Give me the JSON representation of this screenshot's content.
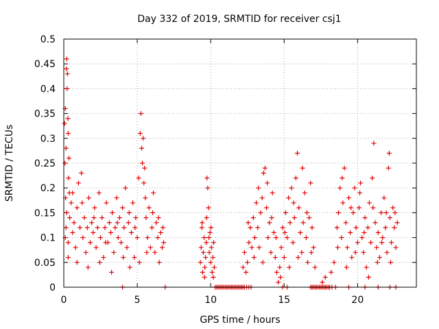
{
  "chart_data": {
    "type": "scatter",
    "title": "Day 332 of 2019, SRMTID for receiver csj1",
    "xlabel": "GPS time / hours",
    "ylabel": "SRMTID / TECUs",
    "xlim": [
      0,
      24
    ],
    "ylim": [
      0,
      0.5
    ],
    "xticks": [
      0,
      5,
      10,
      15,
      20
    ],
    "xtick_labels": [
      "0",
      "5",
      "10",
      "15",
      "20"
    ],
    "yticks": [
      0,
      0.05,
      0.1,
      0.15,
      0.2,
      0.25,
      0.3,
      0.35,
      0.4,
      0.45,
      0.5
    ],
    "ytick_labels": [
      "0",
      "0.05",
      "0.1",
      "0.15",
      "0.2",
      "0.25",
      "0.3",
      "0.35",
      "0.4",
      "0.45",
      "0.5"
    ],
    "grid": true,
    "marker": "+",
    "color": "#e00000",
    "series": [
      {
        "points": [
          [
            0.05,
            0.33
          ],
          [
            0.08,
            0.25
          ],
          [
            0.1,
            0.36
          ],
          [
            0.12,
            0.18
          ],
          [
            0.15,
            0.28
          ],
          [
            0.18,
            0.44
          ],
          [
            0.2,
            0.46
          ],
          [
            0.22,
            0.4
          ],
          [
            0.25,
            0.43
          ],
          [
            0.28,
            0.34
          ],
          [
            0.3,
            0.31
          ],
          [
            0.32,
            0.22
          ],
          [
            0.35,
            0.26
          ],
          [
            0.38,
            0.19
          ],
          [
            0.1,
            0.1
          ],
          [
            0.15,
            0.12
          ],
          [
            0.2,
            0.15
          ],
          [
            0.3,
            0.09
          ],
          [
            0.4,
            0.14
          ],
          [
            0.5,
            0.17
          ],
          [
            0.6,
            0.11
          ],
          [
            0.7,
            0.13
          ],
          [
            0.8,
            0.08
          ],
          [
            0.9,
            0.16
          ],
          [
            1.0,
            0.21
          ],
          [
            1.1,
            0.12
          ],
          [
            1.2,
            0.23
          ],
          [
            1.3,
            0.1
          ],
          [
            1.4,
            0.14
          ],
          [
            1.5,
            0.07
          ],
          [
            1.6,
            0.12
          ],
          [
            1.7,
            0.18
          ],
          [
            1.8,
            0.09
          ],
          [
            1.9,
            0.13
          ],
          [
            2.0,
            0.11
          ],
          [
            2.1,
            0.16
          ],
          [
            2.2,
            0.08
          ],
          [
            2.3,
            0.12
          ],
          [
            2.4,
            0.19
          ],
          [
            2.5,
            0.1
          ],
          [
            2.6,
            0.14
          ],
          [
            2.7,
            0.06
          ],
          [
            2.8,
            0.12
          ],
          [
            2.9,
            0.17
          ],
          [
            3.0,
            0.09
          ],
          [
            3.1,
            0.13
          ],
          [
            3.2,
            0.11
          ],
          [
            3.3,
            0.15
          ],
          [
            3.4,
            0.07
          ],
          [
            3.5,
            0.12
          ],
          [
            3.6,
            0.18
          ],
          [
            3.7,
            0.1
          ],
          [
            3.8,
            0.14
          ],
          [
            3.9,
            0.09
          ],
          [
            4.0,
            0.16
          ],
          [
            4.1,
            0.12
          ],
          [
            4.2,
            0.2
          ],
          [
            4.3,
            0.08
          ],
          [
            4.4,
            0.13
          ],
          [
            4.5,
            0.04
          ],
          [
            4.6,
            0.11
          ],
          [
            4.7,
            0.17
          ],
          [
            4.8,
            0.06
          ],
          [
            4.9,
            0.14
          ],
          [
            5.0,
            0.1
          ],
          [
            5.1,
            0.22
          ],
          [
            5.2,
            0.31
          ],
          [
            5.25,
            0.35
          ],
          [
            5.3,
            0.28
          ],
          [
            5.35,
            0.25
          ],
          [
            5.4,
            0.3
          ],
          [
            5.45,
            0.21
          ],
          [
            5.5,
            0.24
          ],
          [
            5.55,
            0.18
          ],
          [
            5.6,
            0.14
          ],
          [
            5.7,
            0.1
          ],
          [
            5.8,
            0.16
          ],
          [
            5.9,
            0.08
          ],
          [
            6.0,
            0.12
          ],
          [
            6.1,
            0.19
          ],
          [
            6.2,
            0.07
          ],
          [
            6.3,
            0.13
          ],
          [
            6.4,
            0.1
          ],
          [
            6.5,
            0.05
          ],
          [
            6.6,
            0.11
          ],
          [
            6.7,
            0.08
          ],
          [
            6.8,
            0.09
          ],
          [
            4.0,
            0.0
          ],
          [
            6.9,
            0.0
          ],
          [
            0.3,
            0.06
          ],
          [
            0.6,
            0.19
          ],
          [
            0.9,
            0.05
          ],
          [
            1.25,
            0.17
          ],
          [
            1.65,
            0.04
          ],
          [
            2.05,
            0.14
          ],
          [
            2.45,
            0.05
          ],
          [
            2.85,
            0.09
          ],
          [
            3.25,
            0.03
          ],
          [
            3.65,
            0.13
          ],
          [
            4.05,
            0.06
          ],
          [
            4.45,
            0.15
          ],
          [
            4.85,
            0.12
          ],
          [
            5.15,
            0.05
          ],
          [
            5.65,
            0.07
          ],
          [
            6.05,
            0.15
          ],
          [
            6.45,
            0.14
          ],
          [
            6.75,
            0.12
          ],
          [
            9.3,
            0.05
          ],
          [
            9.35,
            0.08
          ],
          [
            9.4,
            0.12
          ],
          [
            9.45,
            0.03
          ],
          [
            9.5,
            0.07
          ],
          [
            9.55,
            0.1
          ],
          [
            9.6,
            0.04
          ],
          [
            9.65,
            0.06
          ],
          [
            9.7,
            0.09
          ],
          [
            9.75,
            0.22
          ],
          [
            9.8,
            0.2
          ],
          [
            9.85,
            0.16
          ],
          [
            9.9,
            0.07
          ],
          [
            9.95,
            0.11
          ],
          [
            10.0,
            0.05
          ],
          [
            10.05,
            0.08
          ],
          [
            10.1,
            0.03
          ],
          [
            10.15,
            0.06
          ],
          [
            10.2,
            0.09
          ],
          [
            10.25,
            0.04
          ],
          [
            9.42,
            0.13
          ],
          [
            9.58,
            0.02
          ],
          [
            9.72,
            0.14
          ],
          [
            9.88,
            0.1
          ],
          [
            10.02,
            0.12
          ],
          [
            10.18,
            0.02
          ],
          [
            10.3,
            0.0
          ],
          [
            10.4,
            0.0
          ],
          [
            10.5,
            0.0
          ],
          [
            10.6,
            0.0
          ],
          [
            10.7,
            0.0
          ],
          [
            10.8,
            0.0
          ],
          [
            10.9,
            0.0
          ],
          [
            11.0,
            0.0
          ],
          [
            11.1,
            0.0
          ],
          [
            11.2,
            0.0
          ],
          [
            11.3,
            0.0
          ],
          [
            11.4,
            0.0
          ],
          [
            11.5,
            0.0
          ],
          [
            11.6,
            0.0
          ],
          [
            11.7,
            0.0
          ],
          [
            11.8,
            0.0
          ],
          [
            11.9,
            0.0
          ],
          [
            12.0,
            0.0
          ],
          [
            12.1,
            0.0
          ],
          [
            12.2,
            0.0
          ],
          [
            12.3,
            0.0
          ],
          [
            12.45,
            0.0
          ],
          [
            12.6,
            0.0
          ],
          [
            12.75,
            0.0
          ],
          [
            12.2,
            0.04
          ],
          [
            12.3,
            0.07
          ],
          [
            12.4,
            0.03
          ],
          [
            12.5,
            0.05
          ],
          [
            12.6,
            0.09
          ],
          [
            12.7,
            0.12
          ],
          [
            12.8,
            0.08
          ],
          [
            12.9,
            0.14
          ],
          [
            13.0,
            0.1
          ],
          [
            13.1,
            0.17
          ],
          [
            13.2,
            0.12
          ],
          [
            13.3,
            0.08
          ],
          [
            13.4,
            0.15
          ],
          [
            13.5,
            0.18
          ],
          [
            13.6,
            0.23
          ],
          [
            13.7,
            0.24
          ],
          [
            13.8,
            0.16
          ],
          [
            13.9,
            0.1
          ],
          [
            14.0,
            0.13
          ],
          [
            14.1,
            0.07
          ],
          [
            14.2,
            0.19
          ],
          [
            14.3,
            0.11
          ],
          [
            14.4,
            0.06
          ],
          [
            14.5,
            0.03
          ],
          [
            14.6,
            0.01
          ],
          [
            14.7,
            0.04
          ],
          [
            14.8,
            0.08
          ],
          [
            14.9,
            0.12
          ],
          [
            15.0,
            0.06
          ],
          [
            15.1,
            0.15
          ],
          [
            15.2,
            0.1
          ],
          [
            15.3,
            0.18
          ],
          [
            15.4,
            0.13
          ],
          [
            15.5,
            0.2
          ],
          [
            15.6,
            0.09
          ],
          [
            15.7,
            0.14
          ],
          [
            15.8,
            0.22
          ],
          [
            15.9,
            0.27
          ],
          [
            16.0,
            0.16
          ],
          [
            16.1,
            0.11
          ],
          [
            16.2,
            0.07
          ],
          [
            16.3,
            0.13
          ],
          [
            16.4,
            0.19
          ],
          [
            16.5,
            0.1
          ],
          [
            16.6,
            0.05
          ],
          [
            16.7,
            0.14
          ],
          [
            16.8,
            0.21
          ],
          [
            16.9,
            0.12
          ],
          [
            17.0,
            0.08
          ],
          [
            17.1,
            0.04
          ],
          [
            13.25,
            0.2
          ],
          [
            13.55,
            0.05
          ],
          [
            13.85,
            0.21
          ],
          [
            14.15,
            0.14
          ],
          [
            14.45,
            0.1
          ],
          [
            14.75,
            0.02
          ],
          [
            15.05,
            0.11
          ],
          [
            15.35,
            0.04
          ],
          [
            15.65,
            0.17
          ],
          [
            15.95,
            0.06
          ],
          [
            16.25,
            0.24
          ],
          [
            16.55,
            0.15
          ],
          [
            16.85,
            0.07
          ],
          [
            12.55,
            0.13
          ],
          [
            12.95,
            0.06
          ],
          [
            14.9,
            0.0
          ],
          [
            15.2,
            0.0
          ],
          [
            16.8,
            0.0
          ],
          [
            16.9,
            0.0
          ],
          [
            17.0,
            0.0
          ],
          [
            17.1,
            0.0
          ],
          [
            17.2,
            0.0
          ],
          [
            17.3,
            0.0
          ],
          [
            17.4,
            0.0
          ],
          [
            17.5,
            0.0
          ],
          [
            17.6,
            0.0
          ],
          [
            17.7,
            0.0
          ],
          [
            17.8,
            0.0
          ],
          [
            17.9,
            0.0
          ],
          [
            18.0,
            0.0
          ],
          [
            18.1,
            0.0
          ],
          [
            18.25,
            0.0
          ],
          [
            18.5,
            0.0
          ],
          [
            19.4,
            0.0
          ],
          [
            20.5,
            0.0
          ],
          [
            21.4,
            0.0
          ],
          [
            22.2,
            0.0
          ],
          [
            22.6,
            0.0
          ],
          [
            17.6,
            0.01
          ],
          [
            17.8,
            0.02
          ],
          [
            18.2,
            0.03
          ],
          [
            18.4,
            0.05
          ],
          [
            18.6,
            0.12
          ],
          [
            18.7,
            0.15
          ],
          [
            18.8,
            0.2
          ],
          [
            18.9,
            0.1
          ],
          [
            19.0,
            0.17
          ],
          [
            19.1,
            0.24
          ],
          [
            19.2,
            0.13
          ],
          [
            19.3,
            0.08
          ],
          [
            19.4,
            0.18
          ],
          [
            19.5,
            0.11
          ],
          [
            19.6,
            0.06
          ],
          [
            19.7,
            0.15
          ],
          [
            19.8,
            0.2
          ],
          [
            19.9,
            0.12
          ],
          [
            20.0,
            0.09
          ],
          [
            20.1,
            0.16
          ],
          [
            20.2,
            0.21
          ],
          [
            20.3,
            0.1
          ],
          [
            20.4,
            0.07
          ],
          [
            20.5,
            0.14
          ],
          [
            20.6,
            0.04
          ],
          [
            20.7,
            0.12
          ],
          [
            20.8,
            0.17
          ],
          [
            20.9,
            0.09
          ],
          [
            21.0,
            0.22
          ],
          [
            21.1,
            0.29
          ],
          [
            21.2,
            0.13
          ],
          [
            21.3,
            0.08
          ],
          [
            21.4,
            0.11
          ],
          [
            21.5,
            0.06
          ],
          [
            21.6,
            0.15
          ],
          [
            21.7,
            0.1
          ],
          [
            21.8,
            0.18
          ],
          [
            21.9,
            0.12
          ],
          [
            22.0,
            0.07
          ],
          [
            22.1,
            0.24
          ],
          [
            22.15,
            0.27
          ],
          [
            22.2,
            0.14
          ],
          [
            22.3,
            0.09
          ],
          [
            22.4,
            0.16
          ],
          [
            22.5,
            0.12
          ],
          [
            22.6,
            0.08
          ],
          [
            22.7,
            0.13
          ],
          [
            18.65,
            0.08
          ],
          [
            18.95,
            0.22
          ],
          [
            19.25,
            0.04
          ],
          [
            19.55,
            0.16
          ],
          [
            19.85,
            0.07
          ],
          [
            20.15,
            0.19
          ],
          [
            20.45,
            0.11
          ],
          [
            20.75,
            0.02
          ],
          [
            21.05,
            0.16
          ],
          [
            21.35,
            0.05
          ],
          [
            21.65,
            0.09
          ],
          [
            21.95,
            0.15
          ],
          [
            22.25,
            0.05
          ],
          [
            22.55,
            0.15
          ]
        ]
      }
    ]
  }
}
